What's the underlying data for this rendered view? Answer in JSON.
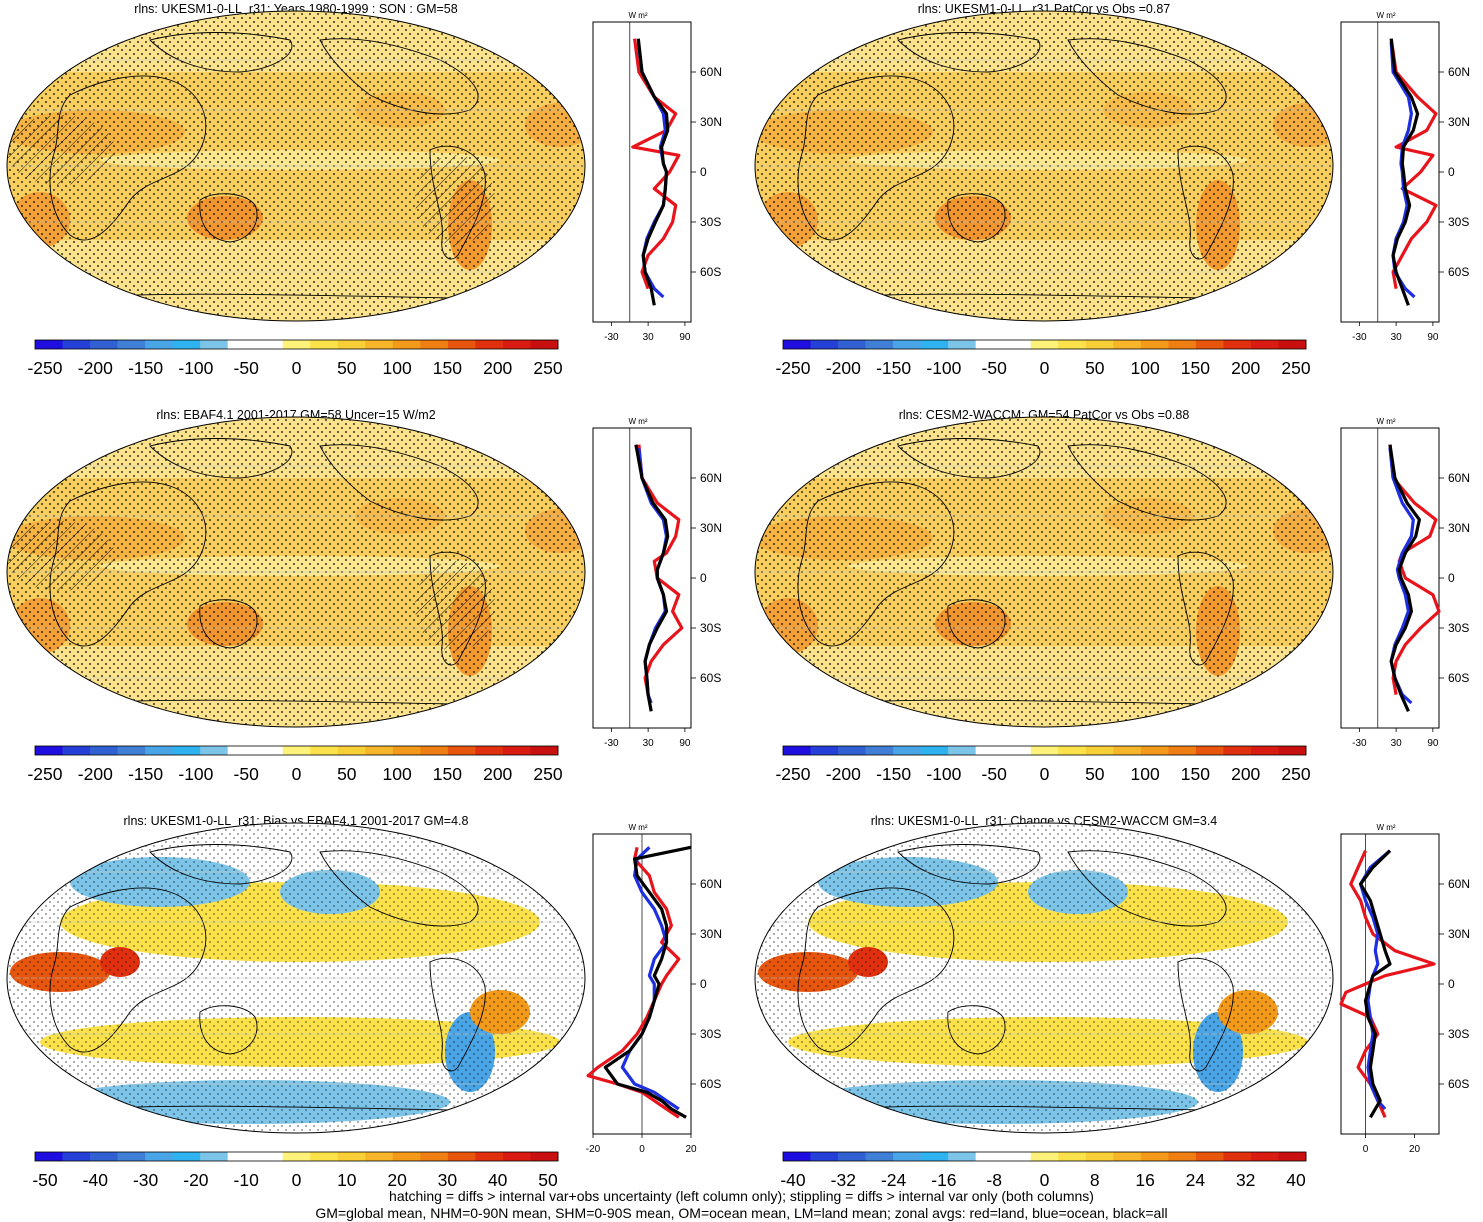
{
  "chart_data": [
    {
      "type": "heatmap",
      "title": "rlns: UKESM1-0-LL_r31: Years 1980-1999 : SON : GM=58",
      "colorbar": {
        "ticks": [
          "-250",
          "-200",
          "-150",
          "-100",
          "-50",
          "0",
          "50",
          "100",
          "150",
          "200",
          "250"
        ]
      },
      "zonal": {
        "unit": "W m²",
        "xticks": [
          "-30",
          "30",
          "90"
        ],
        "yticks": [
          "60N",
          "30N",
          "0",
          "30S",
          "60S"
        ],
        "series": [
          {
            "color": "#e8141c",
            "lat": [
              80,
              60,
              45,
              35,
              25,
              15,
              10,
              0,
              -10,
              -20,
              -30,
              -40,
              -50,
              -60,
              -70
            ],
            "values": [
              8,
              15,
              40,
              75,
              60,
              5,
              80,
              65,
              40,
              75,
              70,
              55,
              30,
              20,
              30
            ]
          },
          {
            "color": "#1d2fe0",
            "lat": [
              78,
              60,
              45,
              35,
              25,
              15,
              5,
              0,
              -10,
              -20,
              -30,
              -40,
              -50,
              -60,
              -70,
              -75
            ],
            "values": [
              14,
              20,
              40,
              55,
              58,
              50,
              55,
              60,
              58,
              55,
              40,
              28,
              22,
              25,
              40,
              55
            ]
          },
          {
            "color": "#000000",
            "lat": [
              80,
              60,
              45,
              35,
              25,
              15,
              5,
              0,
              -10,
              -20,
              -30,
              -40,
              -50,
              -60,
              -70,
              -80
            ],
            "values": [
              14,
              20,
              40,
              60,
              62,
              52,
              55,
              60,
              58,
              55,
              42,
              30,
              22,
              25,
              35,
              40
            ]
          }
        ]
      }
    },
    {
      "type": "heatmap",
      "title": "rlns: UKESM1-0-LL_r31 PatCor vs Obs =0.87",
      "colorbar": {
        "ticks": [
          "-250",
          "-200",
          "-150",
          "-100",
          "-50",
          "0",
          "50",
          "100",
          "150",
          "200",
          "250"
        ]
      },
      "zonal": {
        "unit": "W m²",
        "xticks": [
          "-30",
          "30",
          "90"
        ],
        "yticks": [
          "60N",
          "30N",
          "0",
          "30S",
          "60S"
        ],
        "series": [
          {
            "color": "#e8141c",
            "lat": [
              80,
              60,
              45,
              35,
              25,
              15,
              10,
              0,
              -10,
              -20,
              -30,
              -40,
              -50,
              -60,
              -70
            ],
            "values": [
              22,
              30,
              65,
              95,
              80,
              30,
              90,
              70,
              40,
              95,
              80,
              55,
              40,
              25,
              30
            ]
          },
          {
            "color": "#1d2fe0",
            "lat": [
              78,
              60,
              45,
              35,
              25,
              15,
              5,
              0,
              -10,
              -20,
              -30,
              -40,
              -50,
              -60,
              -70,
              -75
            ],
            "values": [
              22,
              25,
              50,
              55,
              50,
              40,
              38,
              40,
              42,
              48,
              42,
              30,
              25,
              28,
              45,
              60
            ]
          },
          {
            "color": "#000000",
            "lat": [
              80,
              60,
              45,
              35,
              25,
              15,
              5,
              0,
              -10,
              -20,
              -30,
              -40,
              -50,
              -60,
              -70,
              -80
            ],
            "values": [
              22,
              28,
              55,
              65,
              58,
              42,
              40,
              42,
              45,
              52,
              45,
              32,
              25,
              30,
              40,
              50
            ]
          }
        ]
      }
    },
    {
      "type": "heatmap",
      "title": "rlns: EBAF4.1 2001-2017 GM=58 Uncer=15 W/m2",
      "colorbar": {
        "ticks": [
          "-250",
          "-200",
          "-150",
          "-100",
          "-50",
          "0",
          "50",
          "100",
          "150",
          "200",
          "250"
        ]
      },
      "zonal": {
        "unit": "W m²",
        "xticks": [
          "-30",
          "30",
          "90"
        ],
        "yticks": [
          "60N",
          "30N",
          "0",
          "30S",
          "60S"
        ],
        "series": [
          {
            "color": "#e8141c",
            "lat": [
              80,
              60,
              45,
              35,
              25,
              15,
              10,
              0,
              -10,
              -20,
              -30,
              -40,
              -50,
              -60,
              -70
            ],
            "values": [
              15,
              20,
              45,
              80,
              75,
              60,
              40,
              45,
              80,
              70,
              85,
              55,
              35,
              25,
              30
            ]
          },
          {
            "color": "#1d2fe0",
            "lat": [
              78,
              60,
              45,
              35,
              25,
              15,
              5,
              0,
              -10,
              -20,
              -30,
              -40,
              -50,
              -60,
              -70,
              -75
            ],
            "values": [
              15,
              20,
              35,
              55,
              60,
              55,
              45,
              45,
              55,
              58,
              42,
              32,
              25,
              28,
              30,
              35
            ]
          },
          {
            "color": "#000000",
            "lat": [
              80,
              60,
              45,
              35,
              25,
              15,
              5,
              0,
              -10,
              -20,
              -30,
              -40,
              -50,
              -60,
              -70,
              -80
            ],
            "values": [
              10,
              20,
              38,
              58,
              62,
              55,
              45,
              45,
              55,
              60,
              45,
              32,
              25,
              28,
              30,
              35
            ]
          }
        ]
      }
    },
    {
      "type": "heatmap",
      "title": "rlns: CESM2-WACCM: GM=54 PatCor vs Obs =0.88",
      "colorbar": {
        "ticks": [
          "-250",
          "-200",
          "-150",
          "-100",
          "-50",
          "0",
          "50",
          "100",
          "150",
          "200",
          "250"
        ]
      },
      "zonal": {
        "unit": "W m²",
        "xticks": [
          "-30",
          "30",
          "90"
        ],
        "yticks": [
          "60N",
          "30N",
          "0",
          "30S",
          "60S"
        ],
        "series": [
          {
            "color": "#e8141c",
            "lat": [
              80,
              60,
              45,
              35,
              25,
              15,
              10,
              0,
              -10,
              -20,
              -30,
              -40,
              -50,
              -60,
              -70
            ],
            "values": [
              20,
              25,
              60,
              95,
              85,
              40,
              35,
              45,
              90,
              100,
              70,
              45,
              30,
              25,
              30
            ]
          },
          {
            "color": "#1d2fe0",
            "lat": [
              78,
              60,
              45,
              35,
              25,
              15,
              5,
              0,
              -10,
              -20,
              -30,
              -40,
              -50,
              -60,
              -70,
              -75
            ],
            "values": [
              20,
              25,
              40,
              58,
              55,
              40,
              32,
              35,
              45,
              50,
              40,
              28,
              22,
              28,
              40,
              55
            ]
          },
          {
            "color": "#000000",
            "lat": [
              80,
              60,
              45,
              35,
              25,
              15,
              5,
              0,
              -10,
              -20,
              -30,
              -40,
              -50,
              -60,
              -70,
              -80
            ],
            "values": [
              20,
              28,
              48,
              68,
              62,
              45,
              35,
              38,
              50,
              55,
              45,
              30,
              22,
              28,
              38,
              50
            ]
          }
        ]
      }
    },
    {
      "type": "heatmap",
      "title": "rlns: UKESM1-0-LL_r31: Bias vs EBAF4.1 2001-2017  GM=4.8",
      "colorbar": {
        "ticks": [
          "-50",
          "-40",
          "-30",
          "-20",
          "-10",
          "0",
          "10",
          "20",
          "30",
          "40",
          "50"
        ]
      },
      "zonal": {
        "unit": "W m²",
        "xticks": [
          "-20",
          "0",
          "20"
        ],
        "yticks": [
          "60N",
          "30N",
          "0",
          "30S",
          "60S"
        ],
        "series": [
          {
            "color": "#e8141c",
            "lat": [
              82,
              75,
              65,
              55,
              45,
              35,
              25,
              15,
              5,
              0,
              -10,
              -20,
              -30,
              -40,
              -50,
              -55,
              -60,
              -65,
              -70,
              -75,
              -80
            ],
            "values": [
              -2,
              -3,
              3,
              5,
              10,
              12,
              8,
              15,
              10,
              8,
              5,
              2,
              -2,
              -8,
              -18,
              -22,
              -10,
              0,
              5,
              10,
              15
            ]
          },
          {
            "color": "#1d2fe0",
            "lat": [
              82,
              75,
              65,
              55,
              45,
              35,
              25,
              15,
              5,
              0,
              -10,
              -20,
              -30,
              -40,
              -50,
              -60,
              -65,
              -70,
              -75
            ],
            "values": [
              3,
              -2,
              -3,
              0,
              5,
              8,
              10,
              5,
              3,
              5,
              5,
              3,
              0,
              -5,
              -8,
              -3,
              5,
              10,
              15
            ]
          },
          {
            "color": "#000000",
            "lat": [
              82,
              75,
              65,
              55,
              45,
              35,
              25,
              15,
              5,
              0,
              -10,
              -20,
              -30,
              -40,
              -50,
              -60,
              -65,
              -70,
              -75,
              -80
            ],
            "values": [
              20,
              -3,
              -2,
              3,
              8,
              10,
              10,
              8,
              5,
              7,
              5,
              3,
              0,
              -5,
              -15,
              -10,
              2,
              8,
              12,
              18
            ]
          }
        ]
      }
    },
    {
      "type": "heatmap",
      "title": "rlns: UKESM1-0-LL_r31: Change vs CESM2-WACCM GM=3.4",
      "colorbar": {
        "ticks": [
          "-40",
          "-32",
          "-24",
          "-16",
          "-8",
          "0",
          "8",
          "16",
          "24",
          "32",
          "40"
        ]
      },
      "zonal": {
        "unit": "W m²",
        "xticks": [
          "0",
          "20"
        ],
        "yticks": [
          "60N",
          "30N",
          "0",
          "30S",
          "60S"
        ],
        "series": [
          {
            "color": "#e8141c",
            "lat": [
              80,
              70,
              60,
              50,
              40,
              30,
              20,
              12,
              5,
              0,
              -5,
              -12,
              -20,
              -30,
              -40,
              -50,
              -60,
              -70,
              -80
            ],
            "values": [
              0,
              -3,
              -6,
              -2,
              0,
              3,
              12,
              28,
              8,
              0,
              -8,
              -10,
              2,
              5,
              0,
              -3,
              2,
              5,
              8
            ]
          },
          {
            "color": "#1d2fe0",
            "lat": [
              80,
              70,
              60,
              50,
              40,
              30,
              20,
              12,
              5,
              0,
              -10,
              -20,
              -30,
              -40,
              -50,
              -60,
              -70,
              -75
            ],
            "values": [
              10,
              2,
              -2,
              0,
              3,
              5,
              4,
              5,
              3,
              2,
              1,
              2,
              3,
              2,
              1,
              2,
              5,
              8
            ]
          },
          {
            "color": "#000000",
            "lat": [
              80,
              70,
              60,
              50,
              40,
              30,
              20,
              12,
              5,
              0,
              -10,
              -20,
              -30,
              -40,
              -50,
              -60,
              -70,
              -80
            ],
            "values": [
              10,
              3,
              -2,
              2,
              4,
              6,
              8,
              10,
              3,
              2,
              0,
              1,
              4,
              3,
              2,
              3,
              6,
              2
            ]
          }
        ]
      }
    }
  ],
  "footer": {
    "line1": "hatching = diffs > internal var+obs uncertainty (left column only); stippling = diffs > internal var only (both columns)",
    "line2": "GM=global mean, NHM=0-90N mean, SHM=0-90S mean, OM=ocean mean, LM=land mean; zonal avgs: red=land, blue=ocean, black=all"
  },
  "colors": {
    "scale": [
      "#1f0ee0",
      "#2440d8",
      "#3060d2",
      "#3f7fd6",
      "#49a5e6",
      "#2fb2f0",
      "#7dc5e8",
      "#ffffff",
      "#ffffff",
      "#fff27a",
      "#fbe24a",
      "#f8cf37",
      "#f7b52a",
      "#f39a1b",
      "#ef7f12",
      "#e8560d",
      "#e0300d",
      "#d91b12",
      "#c81010"
    ],
    "land": "#fbe083",
    "ocean": "#f8cf5e"
  }
}
